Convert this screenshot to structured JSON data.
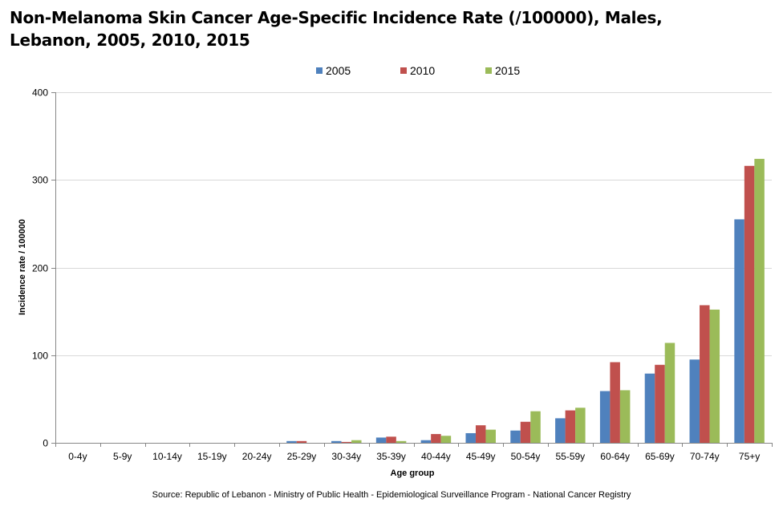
{
  "title_line1": "Non-Melanoma Skin Cancer Age-Specific Incidence Rate (/100000), Males,",
  "title_line2": "Lebanon, 2005, 2010, 2015",
  "source": "Source: Republic of Lebanon - Ministry of Public Health - Epidemiological Surveillance Program - National Cancer Registry",
  "chart_data": {
    "type": "bar",
    "title": "Non-Melanoma Skin Cancer Age-Specific Incidence Rate (/100000), Males, Lebanon, 2005, 2010, 2015",
    "xlabel": "Age group",
    "ylabel": "Incidence rate / 100000",
    "ylim": [
      0,
      400
    ],
    "yticks": [
      0,
      100,
      200,
      300,
      400
    ],
    "grid": true,
    "legend_position": "top-center",
    "categories": [
      "0-4y",
      "5-9y",
      "10-14y",
      "15-19y",
      "20-24y",
      "25-29y",
      "30-34y",
      "35-39y",
      "40-44y",
      "45-49y",
      "50-54y",
      "55-59y",
      "60-64y",
      "65-69y",
      "70-74y",
      "75+y"
    ],
    "series": [
      {
        "name": "2005",
        "color": "#4f81bd",
        "values": [
          0,
          0,
          0,
          0,
          0,
          2,
          2,
          6,
          3,
          11,
          14,
          28,
          59,
          79,
          95,
          255
        ]
      },
      {
        "name": "2010",
        "color": "#c0504d",
        "values": [
          0,
          0,
          0,
          0,
          0,
          2,
          1,
          7,
          10,
          20,
          24,
          37,
          92,
          89,
          157,
          316
        ]
      },
      {
        "name": "2015",
        "color": "#9bbb59",
        "values": [
          0,
          0,
          0,
          0,
          0,
          0,
          3,
          2,
          8,
          15,
          36,
          40,
          60,
          114,
          152,
          324
        ]
      }
    ]
  }
}
